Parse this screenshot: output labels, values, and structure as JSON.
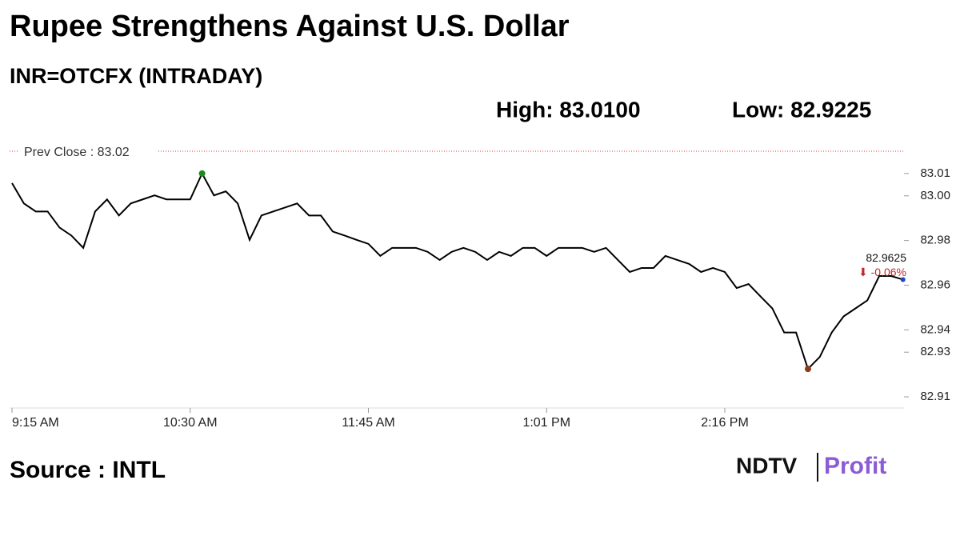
{
  "chart_data": {
    "type": "line",
    "title": "Rupee Strengthens Against U.S. Dollar",
    "subtitle": "INR=OTCFX (INTRADAY)",
    "high_label": "High: 83.0100",
    "low_label": "Low: 82.9225",
    "prev_close": 83.02,
    "prev_close_label": "Prev Close : 83.02",
    "last_label": "82.9625",
    "change_label": "⬇ -0.06%",
    "source": "Source : INTL",
    "logo": [
      "NDTV",
      "Profit"
    ],
    "color": "#000000",
    "categories": [
      "9:15 AM",
      null,
      null,
      null,
      null,
      null,
      null,
      null,
      null,
      null,
      null,
      null,
      null,
      null,
      null,
      "10:30 AM",
      null,
      null,
      null,
      null,
      null,
      null,
      null,
      null,
      null,
      null,
      null,
      null,
      null,
      null,
      "11:45 AM",
      null,
      null,
      null,
      null,
      null,
      null,
      null,
      null,
      null,
      null,
      null,
      null,
      null,
      null,
      "1:01 PM",
      null,
      null,
      null,
      null,
      null,
      null,
      null,
      null,
      null,
      null,
      null,
      null,
      null,
      null,
      "2:16 PM",
      null,
      null,
      null,
      null,
      null,
      null,
      null,
      null,
      null,
      null,
      null,
      null,
      null,
      null,
      null
    ],
    "values": [
      83.0057,
      82.9966,
      82.993,
      82.993,
      82.9858,
      82.9822,
      82.9767,
      82.993,
      82.9984,
      82.9912,
      82.9966,
      82.9984,
      83.0002,
      82.9984,
      82.9984,
      82.9984,
      83.01,
      83.0002,
      83.002,
      82.9966,
      82.9803,
      82.9912,
      82.993,
      82.9948,
      82.9966,
      82.9912,
      82.9912,
      82.984,
      82.9822,
      82.9803,
      82.9785,
      82.9731,
      82.9767,
      82.9767,
      82.9767,
      82.9749,
      82.9713,
      82.9749,
      82.9767,
      82.9749,
      82.9713,
      82.9749,
      82.9731,
      82.9767,
      82.9767,
      82.9731,
      82.9767,
      82.9767,
      82.9767,
      82.9749,
      82.9767,
      82.9713,
      82.9659,
      82.9677,
      82.9677,
      82.9731,
      82.9713,
      82.9695,
      82.9659,
      82.9677,
      82.9659,
      82.9587,
      82.9605,
      82.955,
      82.9496,
      82.9388,
      82.9388,
      82.9225,
      82.9279,
      82.9388,
      82.946,
      82.9496,
      82.9532,
      82.9641,
      82.9641,
      82.9625
    ],
    "ylim": [
      82.905,
      83.025
    ],
    "yticks": [
      82.91,
      82.93,
      82.94,
      82.96,
      82.98,
      {
        "value": 83,
        "label": "83.00"
      },
      83.01
    ],
    "grid": false
  }
}
